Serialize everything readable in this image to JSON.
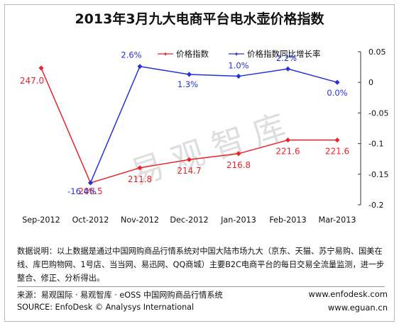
{
  "chart_data": {
    "type": "line",
    "title": "2013年3月九大电商平台电水壶价格指数",
    "categories": [
      "Sep-2012",
      "Oct-2012",
      "Nov-2012",
      "Dec-2012",
      "Jan-2013",
      "Feb-2013",
      "Mar-2013"
    ],
    "series": [
      {
        "name": "价格指数",
        "axis": "left",
        "color": "#e8232a",
        "values": [
          247.0,
          206.5,
          211.8,
          214.7,
          216.8,
          221.6,
          221.6
        ],
        "labels": [
          "247.0",
          "206.5",
          "211.8",
          "214.7",
          "216.8",
          "221.6",
          "221.6"
        ]
      },
      {
        "name": "价格指数同比增长率",
        "axis": "right",
        "color": "#2432d9",
        "values": [
          null,
          -0.164,
          0.026,
          0.013,
          0.01,
          0.022,
          0.0
        ],
        "labels": [
          "",
          "-16.4%",
          "2.6%",
          "1.3%",
          "1.0%",
          "2.2%",
          "0.0%"
        ]
      }
    ],
    "y2_ticks": [
      "0.05",
      "0",
      "-0.05",
      "-0.1",
      "-0.15",
      "-0.2"
    ],
    "y2lim": [
      -0.2,
      0.05
    ],
    "ylim": [
      196,
      256
    ],
    "legend_position": "top-center",
    "grid": false,
    "watermark": "易观智库"
  },
  "note": "数据说明：以上数据是通过中国网购商品行情系统对中国大陆市场九大（京东、天猫、苏宁易购、国美在线、库巴购物网、1号店、当当网、易迅网、QQ商城）主要B2C电商平台的每日交易全流量监测，进一步整合、修正、分析得出。",
  "source_cn": "来源：易观国际 · 易观智库 · eOSS 中国网购商品行情系统",
  "source_en": "SOURCE: EnfoDesk © Analysys International",
  "url1": "www.enfodesk.com",
  "url2": "www.eguan.cn"
}
